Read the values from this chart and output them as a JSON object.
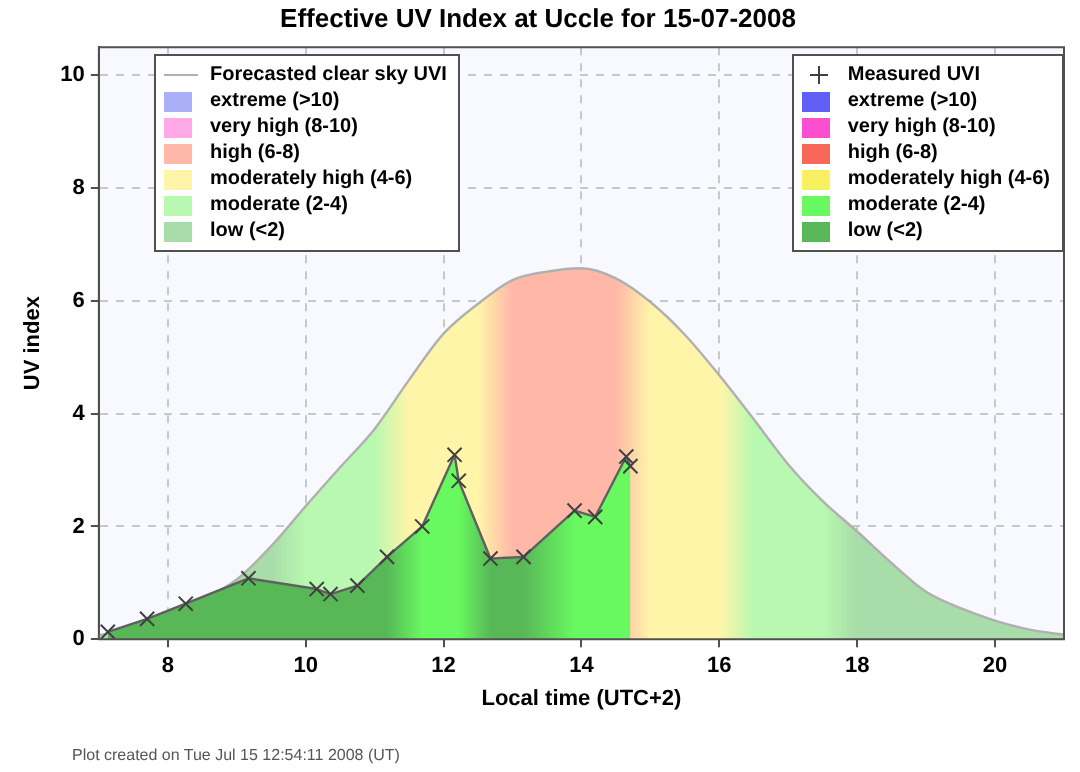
{
  "chart_data": {
    "type": "area",
    "title": "Effective UV Index at Uccle for 15-07-2008",
    "xlabel": "Local time (UTC+2)",
    "ylabel": "UV index",
    "xlim": [
      7,
      21
    ],
    "xticks": [
      8,
      10,
      12,
      14,
      16,
      18,
      20
    ],
    "ylim": [
      0,
      10.5
    ],
    "yticks": [
      0,
      2,
      4,
      6,
      8,
      10
    ],
    "grid": true,
    "legend": "top",
    "annotations": [
      "Plot created on Tue Jul 15 12:54:11 2008 (UT)"
    ],
    "series": [
      {
        "name": "Forecasted clear sky UVI",
        "marker": "none",
        "color": "#b0b0b0",
        "x": [
          7,
          7.5,
          8,
          8.5,
          9,
          9.5,
          10,
          10.5,
          11,
          11.5,
          12,
          12.5,
          13,
          13.5,
          14,
          14.5,
          15,
          15.5,
          16,
          16.5,
          17,
          17.5,
          18,
          18.5,
          19,
          19.5,
          20,
          20.5,
          21
        ],
        "values": [
          0.07,
          0.2,
          0.45,
          0.7,
          1.06,
          1.65,
          2.36,
          3.05,
          3.73,
          4.6,
          5.42,
          5.95,
          6.37,
          6.52,
          6.58,
          6.4,
          5.98,
          5.4,
          4.68,
          3.9,
          3.1,
          2.45,
          1.91,
          1.35,
          0.84,
          0.55,
          0.33,
          0.17,
          0.08
        ]
      },
      {
        "name": "extreme (>10)",
        "color": "#aab0f8"
      },
      {
        "name": "very high (8-10)",
        "color": "#ffa8e8"
      },
      {
        "name": "high (6-8)",
        "color": "#ffb8a8"
      },
      {
        "name": "moderately high (4-6)",
        "color": "#fff5a8"
      },
      {
        "name": "moderate (2-4)",
        "color": "#b8f8b0"
      },
      {
        "name": "low (<2)",
        "color": "#a8dca8"
      },
      {
        "name": "Measured UVI",
        "marker": "cross",
        "color": "#606060",
        "x": [
          7.13,
          7.7,
          8.26,
          9.17,
          10.16,
          10.36,
          10.75,
          11.18,
          11.69,
          12.16,
          12.22,
          12.68,
          13.16,
          13.9,
          14.2,
          14.65,
          14.71
        ],
        "values": [
          0.13,
          0.36,
          0.63,
          1.08,
          0.89,
          0.8,
          0.95,
          1.46,
          2.0,
          3.27,
          2.81,
          1.43,
          1.46,
          2.28,
          2.17,
          3.24,
          3.07
        ]
      },
      {
        "name": "extreme (>10)",
        "color": "#6060f8"
      },
      {
        "name": "very high (8-10)",
        "color": "#f850d0"
      },
      {
        "name": "high (6-8)",
        "color": "#f86858"
      },
      {
        "name": "moderately high (4-6)",
        "color": "#f8f060"
      },
      {
        "name": "moderate (2-4)",
        "color": "#68f860"
      },
      {
        "name": "low (<2)",
        "color": "#58b858"
      }
    ]
  }
}
